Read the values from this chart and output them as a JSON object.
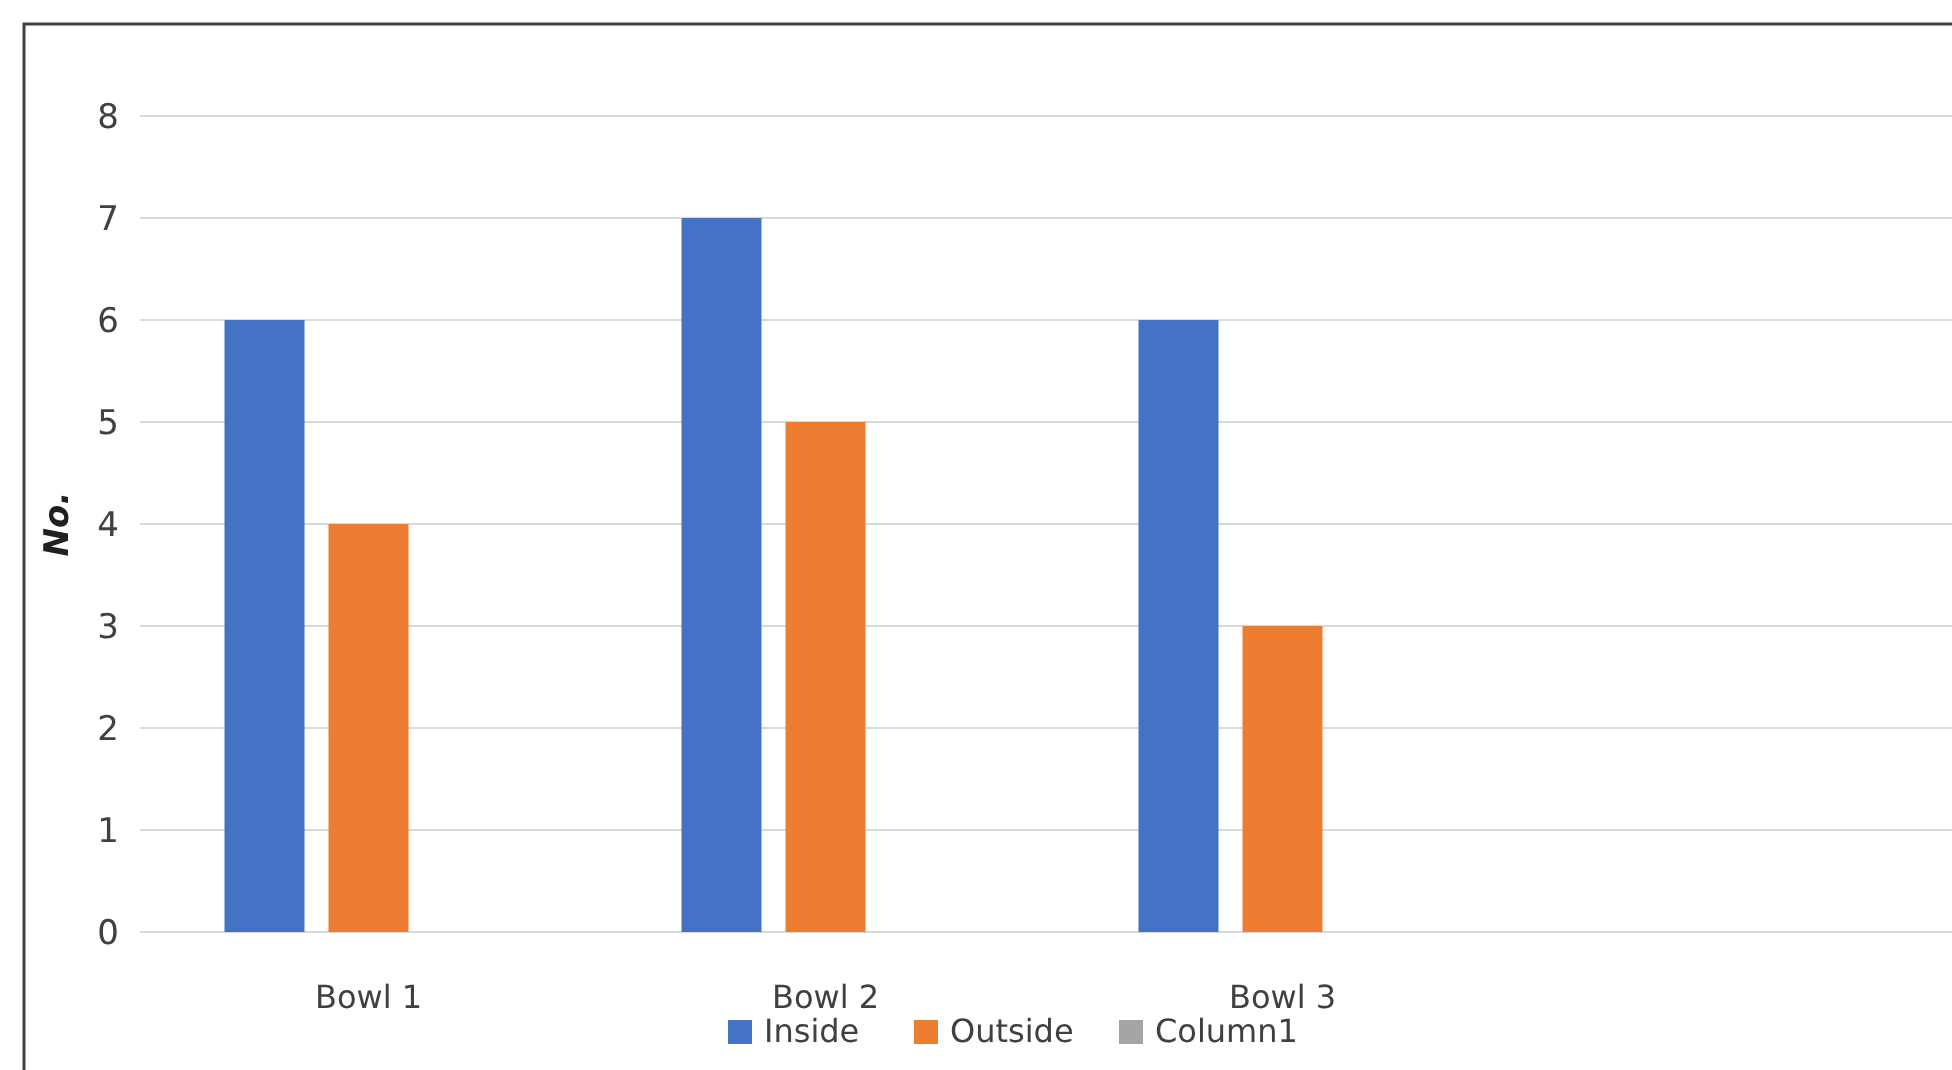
{
  "chart_data": {
    "type": "bar",
    "ylabel": "No.",
    "categories": [
      "Bowl 1",
      "Bowl 2",
      "Bowl 3",
      null
    ],
    "series": [
      {
        "name": "Inside",
        "color": "#4472c4",
        "values": [
          6,
          7,
          6,
          null
        ]
      },
      {
        "name": "Outside",
        "color": "#ed7d31",
        "values": [
          4,
          5,
          3,
          null
        ]
      },
      {
        "name": "Column1",
        "color": "#a5a5a5",
        "values": [
          null,
          null,
          null,
          null
        ]
      }
    ],
    "ylim": [
      0,
      8
    ],
    "yticks": [
      0,
      1,
      2,
      3,
      4,
      5,
      6,
      7,
      8
    ],
    "grid": "y",
    "legend": "bottom"
  }
}
